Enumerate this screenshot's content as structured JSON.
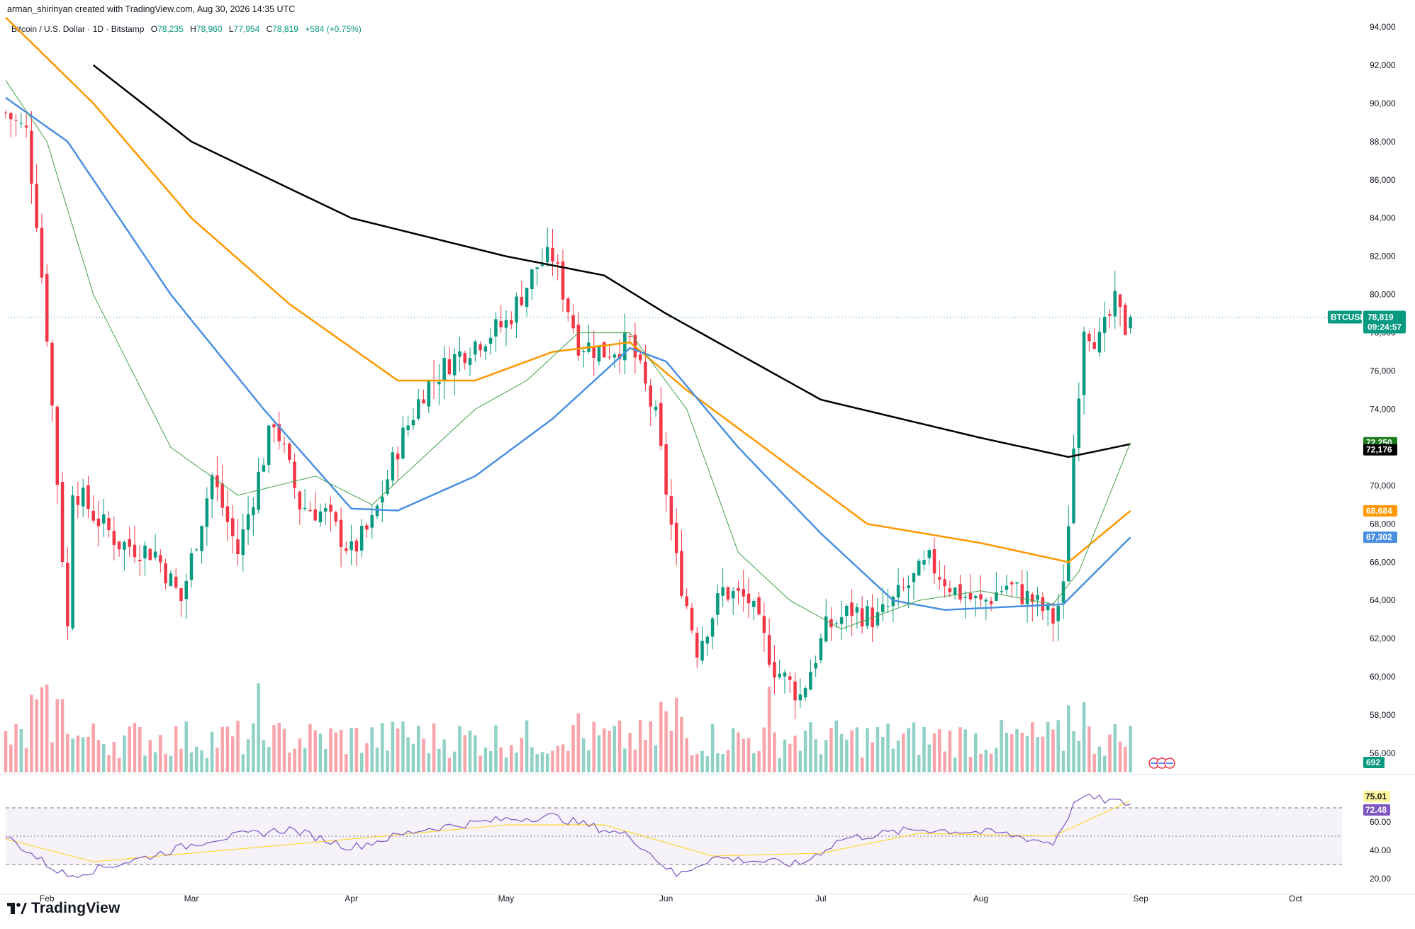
{
  "header": {
    "created_by": "arman_shirinyan created with TradingView.com, Aug 30, 2026 14:35 UTC"
  },
  "legend": {
    "symbol_name": "Bitcoin / U.S. Dollar · 1D · Bitstamp",
    "o_label": "O",
    "o_value": "78,235",
    "h_label": "H",
    "h_value": "78,960",
    "l_label": "L",
    "l_value": "77,954",
    "c_label": "C",
    "c_value": "78,819",
    "change": "+584 (+0.75%)"
  },
  "price_tag": {
    "symbol": "BTCUSD",
    "price": "78,819",
    "countdown": "09:24:57"
  },
  "ma_tags": [
    {
      "value": "72,250",
      "color": "#1e7a1e"
    },
    {
      "value": "72,176",
      "color": "#000000"
    },
    {
      "value": "68,684",
      "color": "#ff9800"
    },
    {
      "value": "67,302",
      "color": "#4a90e2"
    }
  ],
  "volume_tag": "692",
  "rsi_tags": [
    {
      "value": "75.01",
      "color": "#fff59d",
      "text_color": "#131722"
    },
    {
      "value": "72.48",
      "color": "#7e57c2",
      "text_color": "#ffffff"
    }
  ],
  "brand": "TradingView",
  "chart_data": {
    "type": "candlestick",
    "symbol": "BTCUSD",
    "timeframe": "1D",
    "exchange": "Bitstamp",
    "ylim": [
      55000,
      94000
    ],
    "y_ticks": [
      56000,
      58000,
      60000,
      62000,
      64000,
      66000,
      68000,
      70000,
      72000,
      74000,
      76000,
      78000,
      80000,
      82000,
      84000,
      86000,
      88000,
      90000,
      92000,
      94000
    ],
    "y_tick_labels": [
      "56,000",
      "58,000",
      "60,000",
      "62,000",
      "64,000",
      "66,000",
      "68,000",
      "70,000",
      "72,000",
      "74,000",
      "76,000",
      "78,000",
      "80,000",
      "82,000",
      "84,000",
      "86,000",
      "88,000",
      "90,000",
      "92,000",
      "94,000"
    ],
    "x_labels": [
      "Feb",
      "Mar",
      "Apr",
      "May",
      "Jun",
      "Jul",
      "Aug",
      "Sep",
      "Oct"
    ],
    "last_close": 78819,
    "price_path_keypoints": [
      [
        "Jan 24",
        89500
      ],
      [
        "Jan 28",
        88500
      ],
      [
        "Jan 30",
        84000
      ],
      [
        "Feb 1",
        78000
      ],
      [
        "Feb 5",
        62500
      ],
      [
        "Feb 6",
        70000
      ],
      [
        "Feb 10",
        68500
      ],
      [
        "Feb 15",
        67000
      ],
      [
        "Feb 22",
        66500
      ],
      [
        "Feb 27",
        64000
      ],
      [
        "Mar 5",
        70500
      ],
      [
        "Mar 10",
        66500
      ],
      [
        "Mar 17",
        73500
      ],
      [
        "Mar 22",
        69000
      ],
      [
        "Mar 27",
        68500
      ],
      [
        "Apr 1",
        66500
      ],
      [
        "Apr 5",
        68000
      ],
      [
        "Apr 10",
        72000
      ],
      [
        "Apr 15",
        75000
      ],
      [
        "Apr 20",
        76500
      ],
      [
        "Apr 25",
        77500
      ],
      [
        "May 1",
        78500
      ],
      [
        "May 7",
        81500
      ],
      [
        "May 10",
        82000
      ],
      [
        "May 15",
        77500
      ],
      [
        "May 20",
        77000
      ],
      [
        "May 25",
        77500
      ],
      [
        "May 30",
        73500
      ],
      [
        "Jun 3",
        66000
      ],
      [
        "Jun 7",
        61500
      ],
      [
        "Jun 12",
        64500
      ],
      [
        "Jun 17",
        64000
      ],
      [
        "Jun 22",
        60500
      ],
      [
        "Jun 27",
        59000
      ],
      [
        "Jul 2",
        62500
      ],
      [
        "Jul 7",
        63500
      ],
      [
        "Jul 12",
        63000
      ],
      [
        "Jul 17",
        64500
      ],
      [
        "Jul 22",
        66000
      ],
      [
        "Jul 27",
        64500
      ],
      [
        "Aug 1",
        63800
      ],
      [
        "Aug 6",
        64800
      ],
      [
        "Aug 11",
        64000
      ],
      [
        "Aug 15",
        63000
      ],
      [
        "Aug 17",
        64500
      ],
      [
        "Aug 19",
        72000
      ],
      [
        "Aug 21",
        78500
      ],
      [
        "Aug 24",
        77500
      ],
      [
        "Aug 27",
        79500
      ],
      [
        "Aug 29",
        78235
      ],
      [
        "Aug 30",
        78819
      ]
    ],
    "moving_averages": [
      {
        "color": "#000000",
        "points": [
          [
            "Feb 10",
            92000
          ],
          [
            "Mar 1",
            88000
          ],
          [
            "Apr 1",
            84000
          ],
          [
            "May 1",
            82000
          ],
          [
            "May 20",
            81000
          ],
          [
            "Jun 1",
            79000
          ],
          [
            "Jul 1",
            74500
          ],
          [
            "Aug 1",
            72500
          ],
          [
            "Aug 18",
            71500
          ],
          [
            "Aug 30",
            72176
          ]
        ]
      },
      {
        "color": "#ff9800",
        "points": [
          [
            "Jan 24",
            94500
          ],
          [
            "Feb 10",
            90000
          ],
          [
            "Mar 1",
            84000
          ],
          [
            "Mar 20",
            79500
          ],
          [
            "Apr 10",
            75500
          ],
          [
            "Apr 25",
            75500
          ],
          [
            "May 10",
            77000
          ],
          [
            "May 25",
            77500
          ],
          [
            "Jun 5",
            75000
          ],
          [
            "Jun 20",
            72000
          ],
          [
            "Jul 10",
            68000
          ],
          [
            "Aug 1",
            67000
          ],
          [
            "Aug 18",
            66000
          ],
          [
            "Aug 30",
            68684
          ]
        ]
      },
      {
        "color": "#4a90e2",
        "points": [
          [
            "Jan 24",
            90300
          ],
          [
            "Feb 5",
            88000
          ],
          [
            "Feb 25",
            80000
          ],
          [
            "Mar 15",
            74000
          ],
          [
            "Apr 1",
            68800
          ],
          [
            "Apr 10",
            68700
          ],
          [
            "Apr 25",
            70500
          ],
          [
            "May 10",
            73500
          ],
          [
            "May 25",
            77200
          ],
          [
            "Jun 1",
            76500
          ],
          [
            "Jun 15",
            72000
          ],
          [
            "Jul 1",
            67500
          ],
          [
            "Jul 15",
            64000
          ],
          [
            "Jul 25",
            63500
          ],
          [
            "Aug 17",
            63800
          ],
          [
            "Aug 30",
            67302
          ]
        ]
      },
      {
        "color": "#43a047",
        "points": [
          [
            "Jan 24",
            91200
          ],
          [
            "Feb 1",
            88000
          ],
          [
            "Feb 10",
            80000
          ],
          [
            "Feb 25",
            72000
          ],
          [
            "Mar 10",
            69500
          ],
          [
            "Mar 25",
            70500
          ],
          [
            "Apr 5",
            69000
          ],
          [
            "Apr 15",
            71500
          ],
          [
            "Apr 25",
            74000
          ],
          [
            "May 5",
            75500
          ],
          [
            "May 15",
            78000
          ],
          [
            "May 25",
            78000
          ],
          [
            "Jun 5",
            74000
          ],
          [
            "Jun 15",
            66500
          ],
          [
            "Jun 25",
            64000
          ],
          [
            "Jul 5",
            62500
          ],
          [
            "Jul 20",
            64000
          ],
          [
            "Aug 1",
            64500
          ],
          [
            "Aug 15",
            63800
          ],
          [
            "Aug 20",
            65500
          ],
          [
            "Aug 30",
            72250
          ]
        ]
      }
    ],
    "volume_panel": {
      "last": 692
    },
    "rsi_panel": {
      "ylim": [
        15,
        85
      ],
      "y_ticks": [
        20.0,
        40.0,
        60.0
      ],
      "y_tick_labels": [
        "20.00",
        "40.00",
        "60.00"
      ],
      "upper_band": 70,
      "mid_band": 50,
      "lower_band": 30,
      "rsi_last": 72.48,
      "rsi_ma_last": 75.01,
      "rsi_keypoints": [
        [
          "Jan 24",
          50
        ],
        [
          "Feb 1",
          30
        ],
        [
          "Feb 5",
          22
        ],
        [
          "Feb 20",
          35
        ],
        [
          "Mar 5",
          48
        ],
        [
          "Mar 20",
          55
        ],
        [
          "Apr 1",
          42
        ],
        [
          "Apr 15",
          55
        ],
        [
          "May 1",
          62
        ],
        [
          "May 10",
          64
        ],
        [
          "May 25",
          50
        ],
        [
          "Jun 3",
          22
        ],
        [
          "Jun 10",
          35
        ],
        [
          "Jun 27",
          30
        ],
        [
          "Jul 5",
          48
        ],
        [
          "Jul 20",
          55
        ],
        [
          "Aug 5",
          52
        ],
        [
          "Aug 15",
          45
        ],
        [
          "Aug 20",
          78
        ],
        [
          "Aug 26",
          75
        ],
        [
          "Aug 30",
          72.48
        ]
      ],
      "rsi_ma_keypoints": [
        [
          "Jan 24",
          48
        ],
        [
          "Feb 10",
          32
        ],
        [
          "Mar 1",
          38
        ],
        [
          "Apr 1",
          48
        ],
        [
          "May 1",
          58
        ],
        [
          "May 20",
          58
        ],
        [
          "Jun 10",
          36
        ],
        [
          "Jul 1",
          38
        ],
        [
          "Jul 20",
          52
        ],
        [
          "Aug 15",
          50
        ],
        [
          "Aug 30",
          75.01
        ]
      ]
    }
  }
}
